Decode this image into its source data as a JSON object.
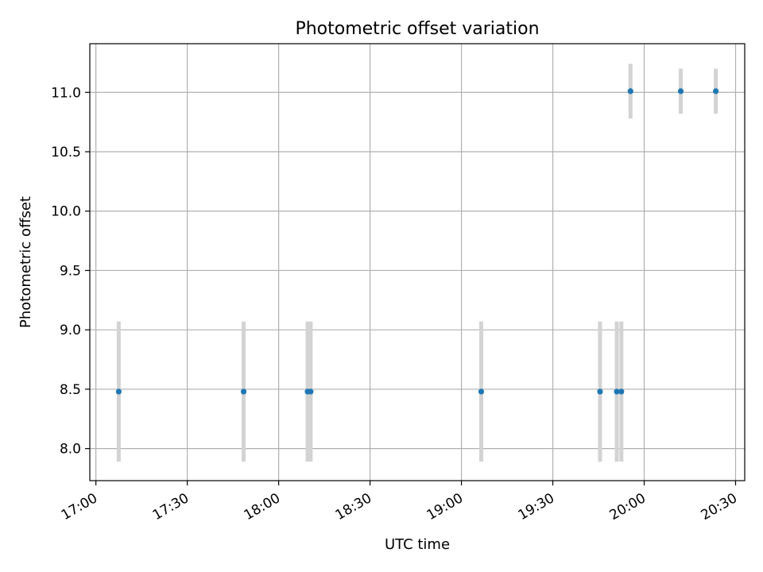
{
  "chart_data": {
    "type": "scatter",
    "title": "Photometric offset variation",
    "xlabel": "UTC time",
    "ylabel": "Photometric offset",
    "x_ticks": [
      "17:00",
      "17:30",
      "18:00",
      "18:30",
      "19:00",
      "19:30",
      "20:00",
      "20:30"
    ],
    "y_ticks": [
      "8.0",
      "8.5",
      "9.0",
      "9.5",
      "10.0",
      "10.5",
      "11.0"
    ],
    "xlim": [
      "16:58",
      "20:33"
    ],
    "ylim": [
      7.73,
      11.41
    ],
    "grid": true,
    "series": [
      {
        "points": [
          {
            "x": "17:07.5",
            "y": 8.48,
            "err": 0.59
          },
          {
            "x": "17:48.5",
            "y": 8.48,
            "err": 0.59
          },
          {
            "x": "18:09.5",
            "y": 8.48,
            "err": 0.59
          },
          {
            "x": "18:10.5",
            "y": 8.48,
            "err": 0.59
          },
          {
            "x": "19:06.5",
            "y": 8.48,
            "err": 0.59
          },
          {
            "x": "19:45.5",
            "y": 8.48,
            "err": 0.59
          },
          {
            "x": "19:51",
            "y": 8.48,
            "err": 0.59
          },
          {
            "x": "19:52.5",
            "y": 8.48,
            "err": 0.59
          },
          {
            "x": "19:55.5",
            "y": 11.01,
            "err": 0.23
          },
          {
            "x": "20:12",
            "y": 11.01,
            "err": 0.19
          },
          {
            "x": "20:23.5",
            "y": 11.01,
            "err": 0.19
          }
        ]
      }
    ]
  },
  "colors": {
    "point": "#1f77b4",
    "errorbar": "#d3d3d3",
    "grid": "#b0b0b0",
    "axes": "#000000"
  }
}
